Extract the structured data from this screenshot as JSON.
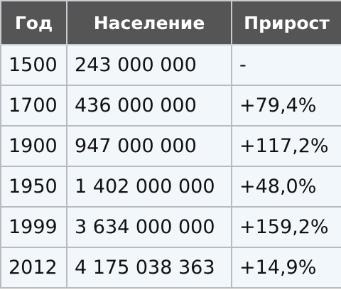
{
  "table": {
    "header": [
      "Год",
      "Население",
      "Прирост"
    ],
    "rows": [
      [
        "1500",
        "243 000 000",
        "-"
      ],
      [
        "1700",
        "436 000 000",
        "+79,4%"
      ],
      [
        "1900",
        "947 000 000",
        "+117,2%"
      ],
      [
        "1950",
        "1 402 000 000",
        "+48,0%"
      ],
      [
        "1999",
        "3 634 000 000",
        "+159,2%"
      ],
      [
        "2012",
        "4 175 038 363",
        "+14,9%"
      ]
    ]
  }
}
